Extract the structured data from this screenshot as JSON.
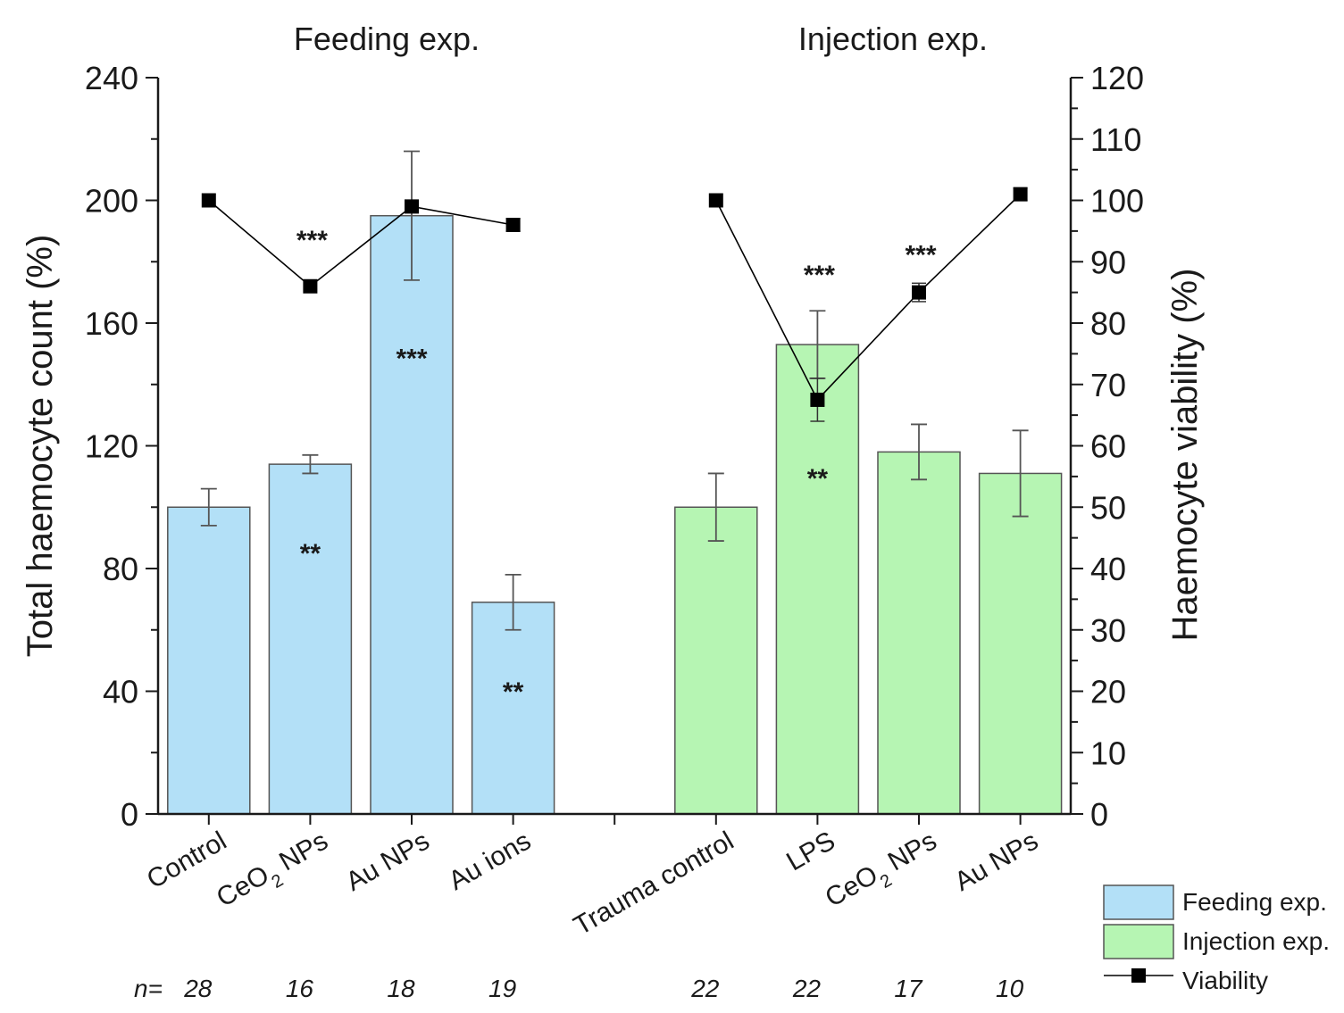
{
  "chart_data": {
    "type": "bar",
    "group_titles": [
      "Feeding exp.",
      "Injection exp."
    ],
    "left_axis": {
      "label": "Total haemocyte count (%)",
      "ylim": [
        0,
        240
      ],
      "ticks": [
        "0",
        "40",
        "80",
        "120",
        "160",
        "200",
        "240"
      ]
    },
    "right_axis": {
      "label": "Haemocyte viability (%)",
      "ylim": [
        0,
        120
      ],
      "ticks": [
        "0",
        "10",
        "20",
        "30",
        "40",
        "50",
        "60",
        "70",
        "80",
        "90",
        "100",
        "110",
        "120"
      ]
    },
    "categories": [
      {
        "label": "Control",
        "base": "Control",
        "sub": "",
        "rest": "",
        "group": "Feeding exp.",
        "n": "28"
      },
      {
        "label": "CeO2 NPs",
        "base": "CeO",
        "sub": "2",
        "rest": " NPs",
        "group": "Feeding exp.",
        "n": "16"
      },
      {
        "label": "Au NPs",
        "base": "Au NPs",
        "sub": "",
        "rest": "",
        "group": "Feeding exp.",
        "n": "18"
      },
      {
        "label": "Au ions",
        "base": "Au ions",
        "sub": "",
        "rest": "",
        "group": "Feeding exp.",
        "n": "19"
      },
      {
        "label": "Trauma control",
        "base": "Trauma control",
        "sub": "",
        "rest": "",
        "group": "Injection exp.",
        "n": "22"
      },
      {
        "label": "LPS",
        "base": "LPS",
        "sub": "",
        "rest": "",
        "group": "Injection exp.",
        "n": "22"
      },
      {
        "label": "CeO2 NPs",
        "base": "CeO",
        "sub": "2",
        "rest": " NPs",
        "group": "Injection exp.",
        "n": "17"
      },
      {
        "label": "Au NPs",
        "base": "Au NPs",
        "sub": "",
        "rest": "",
        "group": "Injection exp.",
        "n": "10"
      }
    ],
    "n_prefix": "n=",
    "series": [
      {
        "name": "Feeding exp.",
        "type": "bar",
        "color": "#b3e0f7",
        "values": [
          100,
          114,
          195,
          69,
          null,
          null,
          null,
          null
        ],
        "errors": [
          6,
          3,
          21,
          9,
          null,
          null,
          null,
          null
        ],
        "significance": [
          "",
          "**",
          "***",
          "**",
          "",
          "",
          "",
          ""
        ]
      },
      {
        "name": "Injection exp.",
        "type": "bar",
        "color": "#b6f5b3",
        "values": [
          null,
          null,
          null,
          null,
          100,
          153,
          118,
          111
        ],
        "errors": [
          null,
          null,
          null,
          null,
          11,
          11,
          9,
          14
        ],
        "significance": [
          "",
          "",
          "",
          "",
          "",
          "**",
          "",
          ""
        ]
      },
      {
        "name": "Viability",
        "type": "line",
        "axis": "right",
        "color": "#000000",
        "values": [
          100,
          86,
          99,
          96,
          100,
          67.5,
          85,
          101
        ],
        "errors": [
          0,
          0,
          0,
          1,
          0,
          3.5,
          1.5,
          1
        ],
        "significance": [
          "",
          "***",
          "",
          "",
          "",
          "***",
          "***",
          ""
        ]
      }
    ],
    "legend": [
      {
        "label": "Feeding exp.",
        "kind": "bar",
        "color": "#b3e0f7"
      },
      {
        "label": "Injection exp.",
        "kind": "bar",
        "color": "#b6f5b3"
      },
      {
        "label": "Viability",
        "kind": "line",
        "color": "#000000"
      }
    ],
    "legend_position": "bottom-right"
  }
}
